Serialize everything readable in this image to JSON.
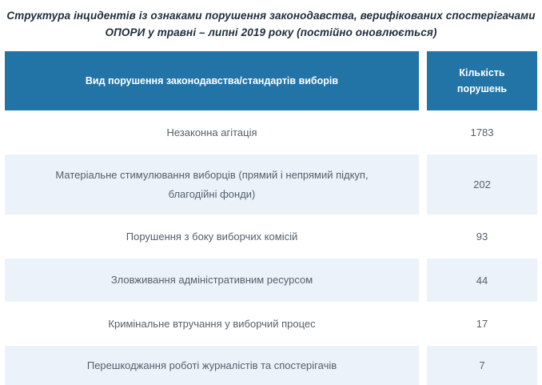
{
  "title": {
    "line1": "Структура інцидентів із ознаками порушення законодавства, верифікованих спостерігачами",
    "line2": "ОПОРИ у травні – липні 2019 року (постійно оновлюється)"
  },
  "table": {
    "header": {
      "type_col": "Вид порушення законодавства/стандартів виборів",
      "count_col": "Кількість порушень"
    },
    "rows": [
      {
        "label": "Незаконна агітація",
        "value": "1783"
      },
      {
        "label": "Матеріальне стимулювання виборців (прямий і непрямий підкуп, благодійні фонди)",
        "value": "202"
      },
      {
        "label": "Порушення з боку виборчих комісій",
        "value": "93"
      },
      {
        "label": "Зловживання адміністративним ресурсом",
        "value": "44"
      },
      {
        "label": "Кримінальне втручання у виборчий процес",
        "value": "17"
      },
      {
        "label": "Перешкоджання роботі журналістів та спостерігачів",
        "value": "7"
      }
    ]
  },
  "colors": {
    "header_bg": "#2274a7",
    "alt_row_bg": "#ebf2f9",
    "title_color": "#1f2d3c",
    "text_color": "#55606a",
    "header_text_color": "#ffffff"
  },
  "chart_data": {
    "type": "table",
    "title": "Структура інцидентів із ознаками порушення законодавства, верифікованих спостерігачами ОПОРИ у травні – липні 2019 року (постійно оновлюється)",
    "columns": [
      "Вид порушення законодавства/стандартів виборів",
      "Кількість порушень"
    ],
    "rows": [
      [
        "Незаконна агітація",
        1783
      ],
      [
        "Матеріальне стимулювання виборців (прямий і непрямий підкуп, благодійні фонди)",
        202
      ],
      [
        "Порушення з боку виборчих комісій",
        93
      ],
      [
        "Зловживання адміністративним ресурсом",
        44
      ],
      [
        "Кримінальне втручання у виборчий процес",
        17
      ],
      [
        "Перешкоджання роботі журналістів та спостерігачів",
        7
      ]
    ],
    "legend_position": "none",
    "grid": false
  }
}
